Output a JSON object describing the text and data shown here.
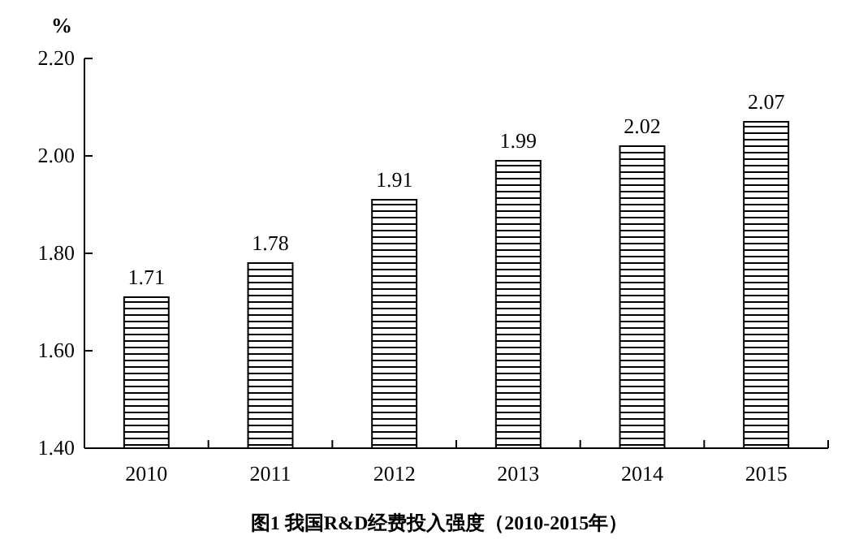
{
  "chart_data": {
    "type": "bar",
    "ylabel": "%",
    "categories": [
      "2010",
      "2011",
      "2012",
      "2013",
      "2014",
      "2015"
    ],
    "values": [
      1.71,
      1.78,
      1.91,
      1.99,
      2.02,
      2.07
    ],
    "color": "#000000",
    "data_labels": true,
    "ylim": [
      1.4,
      2.2
    ],
    "yticks": [
      {
        "value": 1.4,
        "label": "1.40"
      },
      {
        "value": 1.6,
        "label": "1.60"
      },
      {
        "value": 1.8,
        "label": "1.80"
      },
      {
        "value": 2.0,
        "label": "2.00"
      },
      {
        "value": 2.2,
        "label": "2.20"
      }
    ],
    "annotations": [
      "图1 我国R&D经费投入强度（2010-2015年）"
    ]
  }
}
